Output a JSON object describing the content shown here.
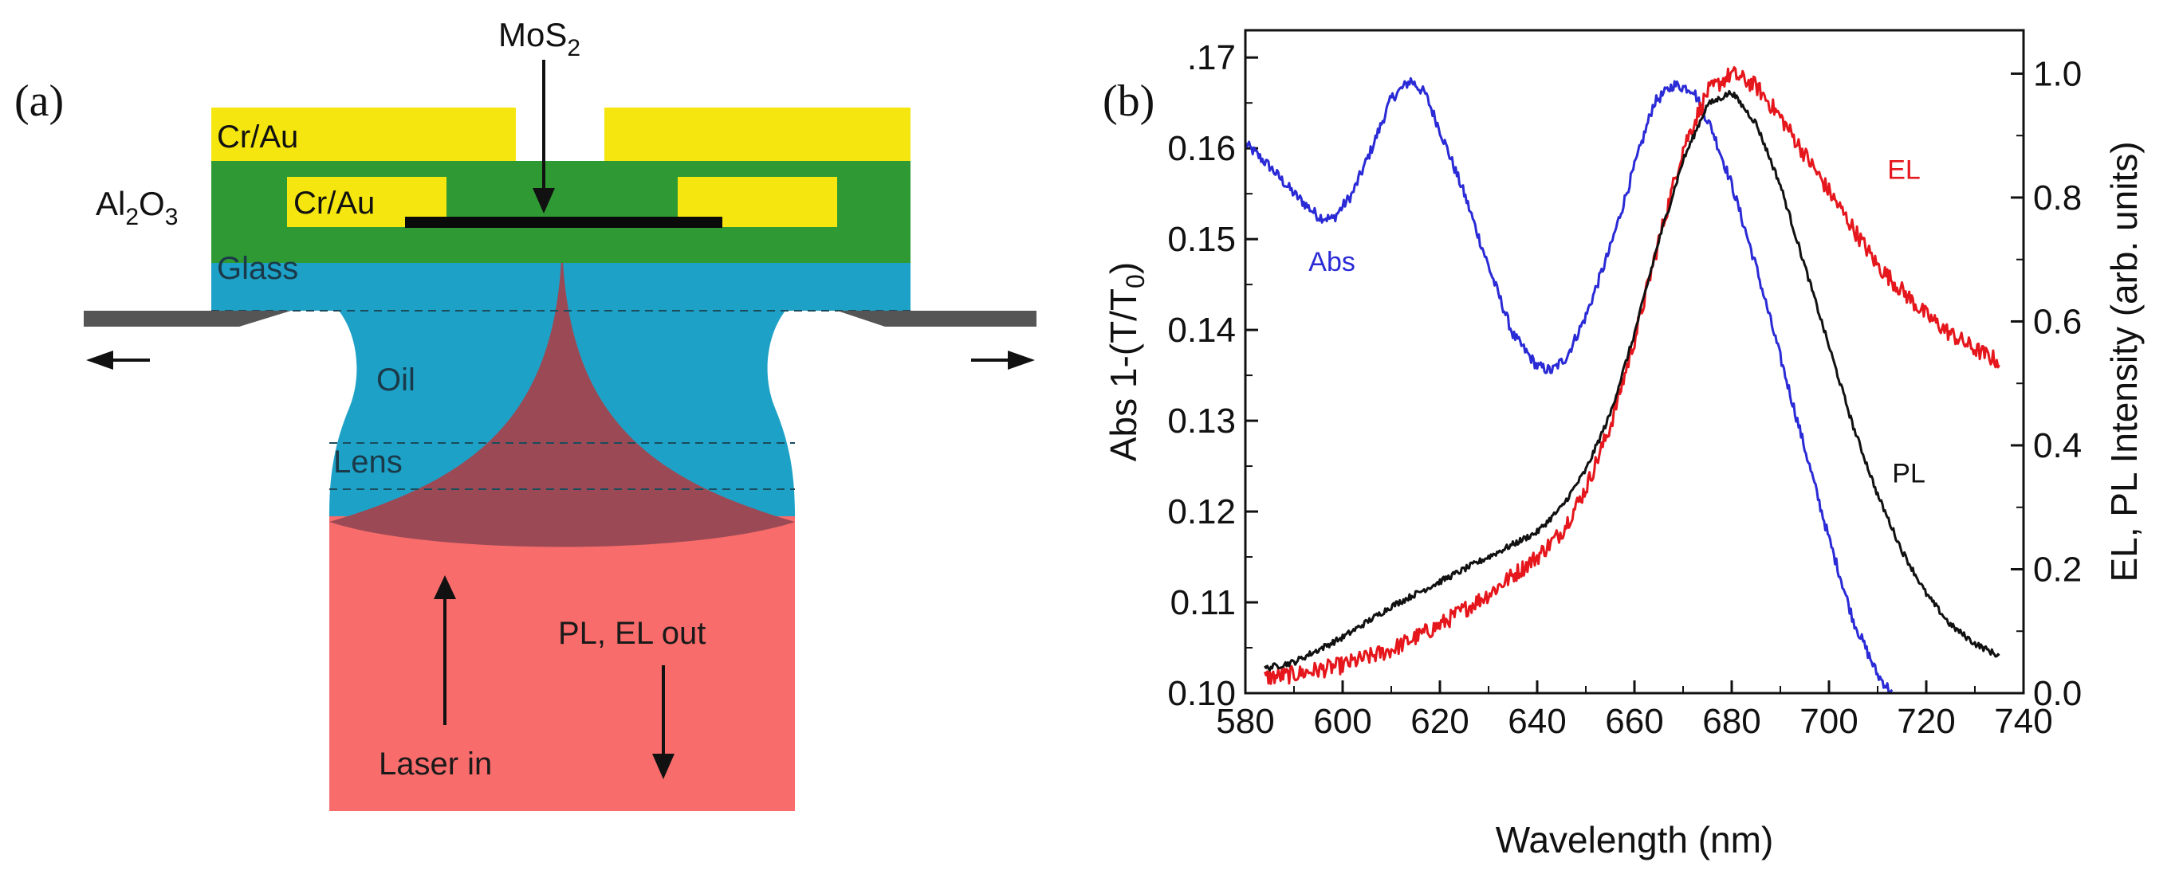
{
  "panel_a": {
    "label": "(a)",
    "mos2_label": {
      "main": "MoS",
      "sub": "2"
    },
    "top_contact_left": "Cr/Au",
    "bottom_contact": "Cr/Au",
    "al2o3_label": {
      "al": "Al",
      "al_sub": "2",
      "o": "O",
      "o_sub": "3"
    },
    "glass": "Glass",
    "oil": "Oil",
    "lens": "Lens",
    "laser_in": "Laser in",
    "pl_el_out": "PL, EL out",
    "colors": {
      "gold": "#f5e60f",
      "al2o3": "#2f9a33",
      "glass": "#1ea1c6",
      "beam": "#f96c6c",
      "cone": "#9b4a55",
      "stage": "#555555"
    }
  },
  "chart_data": {
    "type": "line",
    "panel_label": "(b)",
    "xlabel": "Wavelength (nm)",
    "ylabel_left": {
      "main": "Abs 1-(T/T",
      "sub": "0",
      "tail": ")"
    },
    "ylabel_right": "EL, PL Intensity (arb. units)",
    "xlim": [
      580,
      740
    ],
    "ylim_left": [
      0.1,
      0.173
    ],
    "ylim_right": [
      0.0,
      1.07
    ],
    "x_ticks": [
      580,
      600,
      620,
      640,
      660,
      680,
      700,
      720,
      740
    ],
    "x_tick_labels": [
      "580",
      "600",
      "620",
      "640",
      "660",
      "680",
      "700",
      "720",
      "740"
    ],
    "y_left_ticks": [
      0.1,
      0.11,
      0.12,
      0.13,
      0.14,
      0.15,
      0.16,
      0.17
    ],
    "y_left_tick_labels": [
      "0.10",
      "0.11",
      "0.12",
      "0.13",
      "0.14",
      "0.15",
      "0.16",
      ".17"
    ],
    "y_right_ticks": [
      0.0,
      0.2,
      0.4,
      0.6,
      0.8,
      1.0
    ],
    "y_right_tick_labels": [
      "0.0",
      "0.2",
      "0.4",
      "0.6",
      "0.8",
      "1.0"
    ],
    "series": [
      {
        "name": "Abs",
        "axis": "left",
        "color": "#2a2ad6",
        "noise": 0.0006,
        "x": [
          580,
          585,
          590,
          595,
          598,
          602,
          606,
          610,
          614,
          617,
          620,
          625,
          630,
          635,
          640,
          643,
          646,
          650,
          655,
          660,
          664,
          668,
          672,
          676,
          680,
          685,
          690,
          695,
          700,
          705,
          710,
          713
        ],
        "y": [
          0.1605,
          0.158,
          0.155,
          0.1525,
          0.1522,
          0.155,
          0.16,
          0.1655,
          0.1675,
          0.166,
          0.162,
          0.155,
          0.147,
          0.1395,
          0.136,
          0.1355,
          0.137,
          0.1415,
          0.149,
          0.158,
          0.165,
          0.167,
          0.1665,
          0.162,
          0.156,
          0.147,
          0.137,
          0.127,
          0.117,
          0.108,
          0.102,
          0.1
        ]
      },
      {
        "name": "EL",
        "axis": "right",
        "color": "#e5161c",
        "noise": 0.014,
        "x": [
          584,
          590,
          600,
          610,
          620,
          630,
          640,
          645,
          650,
          655,
          660,
          665,
          670,
          675,
          680,
          685,
          690,
          695,
          700,
          705,
          710,
          715,
          720,
          725,
          730,
          735
        ],
        "y": [
          0.025,
          0.03,
          0.045,
          0.07,
          0.11,
          0.16,
          0.22,
          0.26,
          0.33,
          0.43,
          0.57,
          0.73,
          0.88,
          0.97,
          1.0,
          0.98,
          0.93,
          0.87,
          0.81,
          0.75,
          0.69,
          0.65,
          0.61,
          0.58,
          0.555,
          0.535
        ]
      },
      {
        "name": "PL",
        "axis": "right",
        "color": "#111111",
        "noise": 0.005,
        "x": [
          584,
          590,
          600,
          610,
          620,
          630,
          635,
          640,
          645,
          650,
          655,
          660,
          665,
          670,
          675,
          680,
          685,
          690,
          695,
          700,
          705,
          710,
          715,
          720,
          725,
          730,
          735
        ],
        "y": [
          0.04,
          0.05,
          0.09,
          0.14,
          0.18,
          0.22,
          0.24,
          0.26,
          0.3,
          0.36,
          0.45,
          0.58,
          0.73,
          0.86,
          0.95,
          0.97,
          0.92,
          0.82,
          0.69,
          0.56,
          0.43,
          0.32,
          0.23,
          0.16,
          0.11,
          0.08,
          0.06
        ]
      }
    ],
    "annotations": [
      {
        "text": "Abs",
        "color": "#2a2ad6",
        "x": 593,
        "y": 0.1465,
        "axis": "left"
      },
      {
        "text": "EL",
        "color": "#e5161c",
        "x": 712,
        "y": 0.83,
        "axis": "right"
      },
      {
        "text": "PL",
        "color": "#111111",
        "x": 713,
        "y": 0.34,
        "axis": "right"
      }
    ]
  }
}
